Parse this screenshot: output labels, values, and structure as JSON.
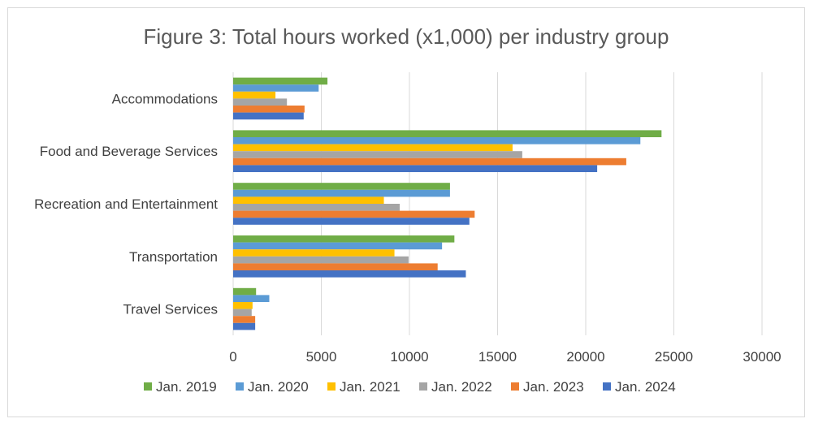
{
  "chart_data": {
    "type": "bar",
    "orientation": "horizontal",
    "title": "Figure 3: Total hours worked (x1,000) per industry group",
    "xlabel": "",
    "ylabel": "",
    "xlim": [
      0,
      30000
    ],
    "xticks": [
      0,
      5000,
      10000,
      15000,
      20000,
      25000,
      30000
    ],
    "grid": true,
    "legend_position": "bottom",
    "categories": [
      "Accommodations",
      "Food and Beverage Services",
      "Recreation and Entertainment",
      "Transportation",
      "Travel Services"
    ],
    "series": [
      {
        "name": "Jan. 2019",
        "color": "#70ad47",
        "values": [
          5350,
          24300,
          12300,
          12550,
          1300
        ]
      },
      {
        "name": "Jan. 2020",
        "color": "#5b9bd5",
        "values": [
          4850,
          23100,
          12300,
          11850,
          2050
        ]
      },
      {
        "name": "Jan. 2021",
        "color": "#ffc000",
        "values": [
          2400,
          15850,
          8550,
          9150,
          1100
        ]
      },
      {
        "name": "Jan. 2022",
        "color": "#a5a5a5",
        "values": [
          3050,
          16400,
          9450,
          9950,
          1050
        ]
      },
      {
        "name": "Jan. 2023",
        "color": "#ed7d31",
        "values": [
          4050,
          22300,
          13700,
          11600,
          1250
        ]
      },
      {
        "name": "Jan. 2024",
        "color": "#4472c4",
        "values": [
          4000,
          20650,
          13400,
          13200,
          1250
        ]
      }
    ]
  }
}
